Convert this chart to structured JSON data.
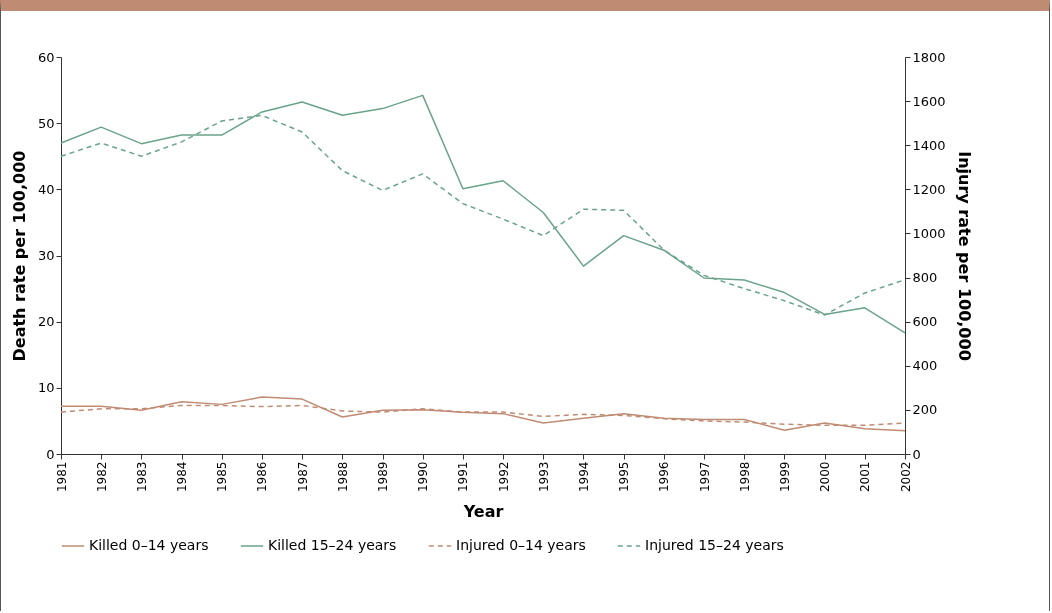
{
  "chart_data": {
    "type": "line",
    "xlabel": "Year",
    "ylabel": "Death rate per 100,000",
    "y2label": "Injury rate per 100,000",
    "categories": [
      "1981",
      "1982",
      "1983",
      "1984",
      "1985",
      "1986",
      "1987",
      "1988",
      "1989",
      "1990",
      "1991",
      "1992",
      "1993",
      "1994",
      "1995",
      "1996",
      "1997",
      "1998",
      "1999",
      "2000",
      "2001",
      "2002"
    ],
    "series": [
      {
        "name": "Killed 0–14 years",
        "color": "#c08b73",
        "line_style": "solid",
        "values": [
          7.2,
          7.2,
          6.6,
          7.9,
          7.5,
          8.6,
          8.3,
          5.6,
          6.6,
          6.7,
          6.3,
          6.1,
          4.7,
          5.4,
          6.1,
          5.4,
          5.2,
          5.2,
          3.6,
          4.7,
          3.8,
          3.5
        ]
      },
      {
        "name": "Killed 15–24 years",
        "color": "#6aa38a",
        "line_style": "solid",
        "values": [
          47,
          49.4,
          46.9,
          48.2,
          48.2,
          51.7,
          53.2,
          51.2,
          52.2,
          54.2,
          40.1,
          41.3,
          36.5,
          28.4,
          33,
          30.8,
          26.6,
          26.3,
          24.4,
          21.1,
          22.1,
          18.3
        ]
      },
      {
        "name": "Injured 0–14 years",
        "color": "#c08b73",
        "line_style": "dashed",
        "axis": "y2",
        "values": [
          190,
          205,
          205,
          220,
          220,
          215,
          220,
          195,
          190,
          205,
          190,
          190,
          170,
          180,
          175,
          160,
          150,
          145,
          135,
          130,
          130,
          140
        ]
      },
      {
        "name": "Injured 15–24 years",
        "color": "#6aa38a",
        "line_style": "dashed",
        "axis": "y2",
        "values": [
          1350,
          1410,
          1350,
          1415,
          1510,
          1535,
          1460,
          1285,
          1195,
          1270,
          1135,
          1065,
          990,
          1110,
          1105,
          925,
          810,
          750,
          695,
          630,
          730,
          790
        ]
      }
    ],
    "ylim": [
      0,
      60
    ],
    "yticks": [
      0,
      10,
      20,
      30,
      40,
      50,
      60
    ],
    "y2lim": [
      0,
      1800
    ],
    "y2ticks": [
      0,
      200,
      400,
      600,
      800,
      1000,
      1200,
      1400,
      1600,
      1800
    ],
    "grid": false,
    "legend": "bottom",
    "marker": "none"
  }
}
